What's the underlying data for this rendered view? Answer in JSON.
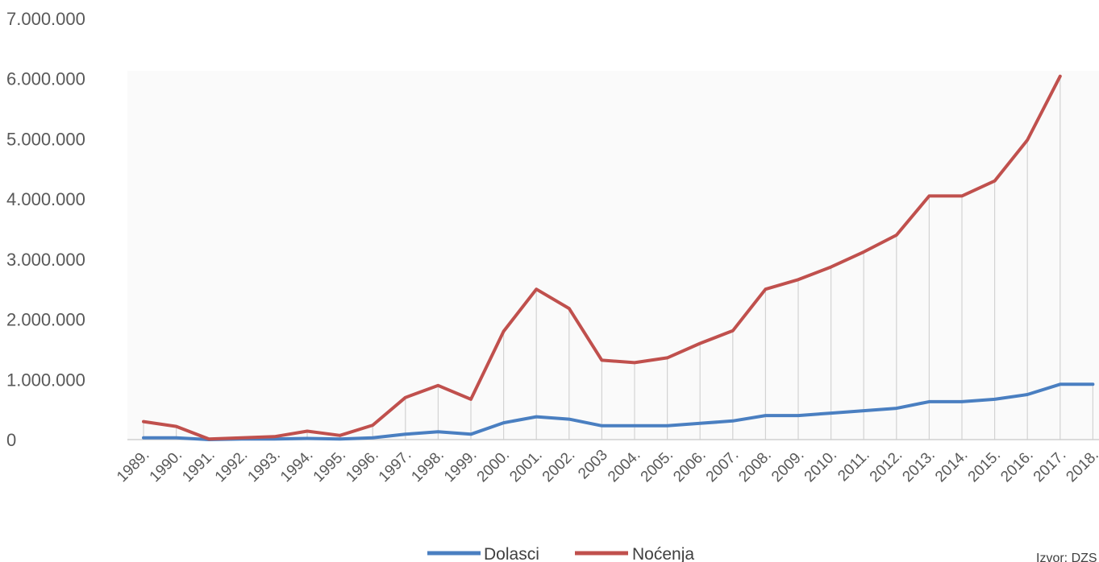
{
  "chart_data": {
    "type": "line",
    "title": "",
    "xlabel": "",
    "ylabel": "",
    "x": [
      "1989.",
      "1990.",
      "1991.",
      "1992.",
      "1993.",
      "1994.",
      "1995.",
      "1996.",
      "1997.",
      "1998.",
      "1999.",
      "2000.",
      "2001.",
      "2002.",
      "2003",
      "2004.",
      "2005.",
      "2006.",
      "2007.",
      "2008.",
      "2009.",
      "2010.",
      "2011.",
      "2012.",
      "2013.",
      "2014.",
      "2015.",
      "2016.",
      "2017.",
      "2018."
    ],
    "series": [
      {
        "name": "Dolasci",
        "color": "#4a7fc1",
        "values": [
          30000,
          30000,
          0,
          10000,
          10000,
          20000,
          10000,
          30000,
          90000,
          130000,
          90000,
          280000,
          380000,
          340000,
          230000,
          230000,
          230000,
          270000,
          310000,
          400000,
          400000,
          440000,
          480000,
          520000,
          630000,
          630000,
          670000,
          750000,
          920000,
          920000
        ]
      },
      {
        "name": "Noćenja",
        "color": "#c0504d",
        "values": [
          300000,
          220000,
          10000,
          30000,
          50000,
          140000,
          70000,
          240000,
          700000,
          900000,
          670000,
          1800000,
          2500000,
          2180000,
          1320000,
          1280000,
          1360000,
          1600000,
          1810000,
          2500000,
          2660000,
          2870000,
          3120000,
          3400000,
          4050000,
          4050000,
          4300000,
          4980000,
          6040000,
          null
        ]
      }
    ],
    "y_ticks": [
      "0",
      "1.000.000",
      "2.000.000",
      "3.000.000",
      "4.000.000",
      "5.000.000",
      "6.000.000",
      "7.000.000"
    ],
    "ylim": [
      0,
      7000000
    ],
    "grid": "vertical drop lines",
    "legend": "bottom"
  },
  "source_label": "Izvor: DZS"
}
